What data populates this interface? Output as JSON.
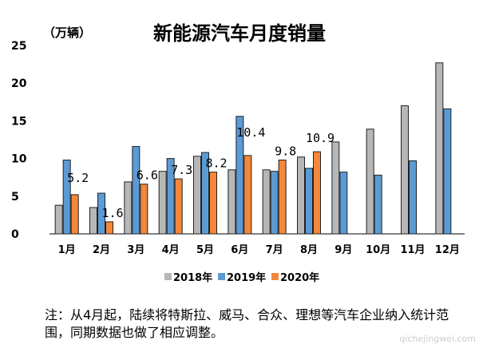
{
  "chart_data": {
    "type": "bar",
    "title": "新能源汽车月度销量",
    "ylabel": "（万辆）",
    "ylim": [
      0,
      25
    ],
    "yticks": [
      0,
      5,
      10,
      15,
      20,
      25
    ],
    "grid": false,
    "legend": "bottom",
    "categories": [
      "1月",
      "2月",
      "3月",
      "4月",
      "5月",
      "6月",
      "7月",
      "8月",
      "9月",
      "10月",
      "11月",
      "12月"
    ],
    "series": [
      {
        "name": "2018年",
        "color": "#b7b7b7",
        "values": [
          3.8,
          3.5,
          6.9,
          8.3,
          10.3,
          8.5,
          8.5,
          10.2,
          12.2,
          13.9,
          17.0,
          22.7
        ]
      },
      {
        "name": "2019年",
        "color": "#5b9bd5",
        "values": [
          9.8,
          5.4,
          11.6,
          10.0,
          10.8,
          15.6,
          8.3,
          8.7,
          8.2,
          7.8,
          9.7,
          16.6
        ]
      },
      {
        "name": "2020年",
        "color": "#f4873a",
        "values": [
          5.2,
          1.6,
          6.6,
          7.3,
          8.2,
          10.4,
          9.8,
          10.9,
          null,
          null,
          null,
          null
        ]
      }
    ],
    "data_labels": [
      "5.2",
      "1.6",
      "6.6",
      "7.3",
      "8.2",
      "10.4",
      "9.8",
      "10.9"
    ]
  },
  "note": "注：从4月起，陆续将特斯拉、威马、合众、理想等汽车企业纳入统计范围，同期数据也做了相应调整。",
  "watermark": "qichejingwei.com"
}
